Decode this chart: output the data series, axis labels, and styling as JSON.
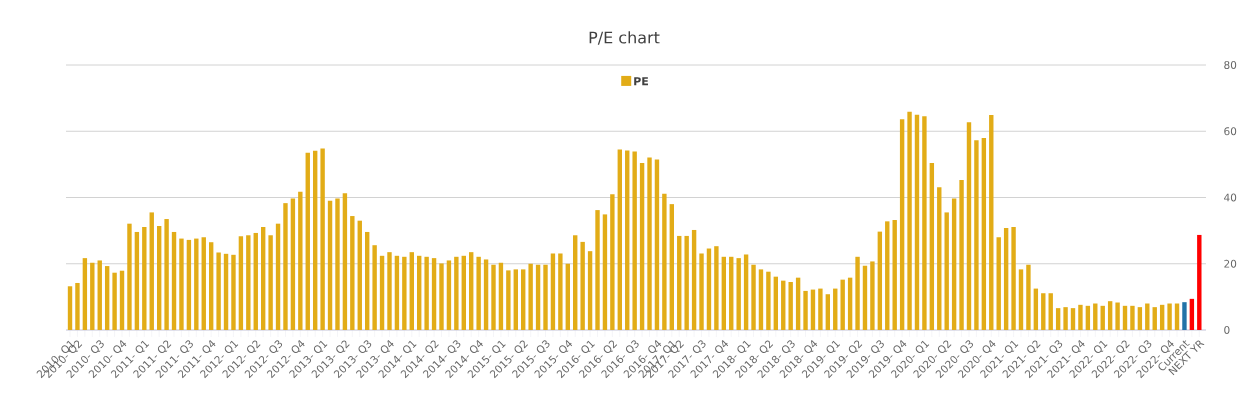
{
  "chart_data": {
    "type": "bar",
    "title": "P/E chart",
    "categories": [
      "2010- Q1",
      "2010- Q2",
      null,
      null,
      "2010- Q3",
      null,
      null,
      "2010- Q4",
      null,
      null,
      "2011- Q1",
      null,
      null,
      "2011- Q2",
      null,
      null,
      "2011- Q3",
      null,
      null,
      "2011- Q4",
      null,
      null,
      "2012- Q1",
      null,
      null,
      "2012- Q2",
      null,
      null,
      "2012- Q3",
      null,
      null,
      "2012- Q4",
      null,
      null,
      "2013- Q1",
      null,
      null,
      "2013- Q2",
      null,
      null,
      "2013- Q3",
      null,
      null,
      "2013- Q4",
      null,
      null,
      "2014- Q1",
      null,
      null,
      "2014- Q2",
      null,
      null,
      "2014- Q3",
      null,
      null,
      "2014- Q4",
      null,
      null,
      "2015- Q1",
      null,
      null,
      "2015- Q2",
      null,
      null,
      "2015- Q3",
      null,
      null,
      "2015- Q4",
      null,
      null,
      "2016- Q1",
      null,
      null,
      "2016- Q2",
      null,
      null,
      "2016- Q3",
      null,
      null,
      "2016- Q4",
      null,
      "2017- Q1",
      "2017- Q2",
      null,
      null,
      "2017- Q3",
      null,
      null,
      "2017- Q4",
      null,
      null,
      "2018- Q1",
      null,
      null,
      "2018- Q2",
      null,
      null,
      "2018- Q3",
      null,
      null,
      "2018- Q4",
      null,
      null,
      "2019- Q1",
      null,
      null,
      "2019- Q2",
      null,
      null,
      "2019- Q3",
      null,
      null,
      "2019- Q4",
      null,
      null,
      "2020- Q1",
      null,
      null,
      "2020- Q2",
      null,
      null,
      "2020- Q3",
      null,
      null,
      "2020- Q4",
      null,
      null,
      "2021- Q1",
      null,
      null,
      "2021- Q2",
      null,
      null,
      "2021- Q3",
      null,
      null,
      "2021- Q4",
      null,
      null,
      "2022- Q1",
      null,
      null,
      "2022- Q2",
      null,
      null,
      "2022- Q3",
      null,
      null,
      "2022- Q4",
      null,
      "Current",
      null,
      "NEXT YR"
    ],
    "series": [
      {
        "name": "PE",
        "color": "#e2ac17",
        "values": [
          13.2,
          14.2,
          21.7,
          20.3,
          21.0,
          19.3,
          17.3,
          17.9,
          32.1,
          29.6,
          31.1,
          35.5,
          31.4,
          33.5,
          29.6,
          27.6,
          27.2,
          27.6,
          28.0,
          26.5,
          23.4,
          23.0,
          22.7,
          28.3,
          28.6,
          29.3,
          31.1,
          28.6,
          32.1,
          38.3,
          39.7,
          41.7,
          53.5,
          54.1,
          54.8,
          39.0,
          39.7,
          41.3,
          34.4,
          33.0,
          29.6,
          25.6,
          22.4,
          23.5,
          22.4,
          22.1,
          23.5,
          22.4,
          22.1,
          21.7,
          20.1,
          21.0,
          22.1,
          22.4,
          23.5,
          22.1,
          21.3,
          19.7,
          20.3,
          18.0,
          18.3,
          18.3,
          20.0,
          19.7,
          19.7,
          23.1,
          23.1,
          20.0,
          28.6,
          26.6,
          23.8,
          36.2,
          34.9,
          41.0,
          54.5,
          54.2,
          53.9,
          50.4,
          52.1,
          51.5,
          41.1,
          38.0,
          28.4,
          28.4,
          30.2,
          23.1,
          24.6,
          25.3,
          22.1,
          22.1,
          21.7,
          22.8,
          19.7,
          18.3,
          17.6,
          16.1,
          14.9,
          14.5,
          15.8,
          11.8,
          12.2,
          12.5,
          10.8,
          12.5,
          15.2,
          15.8,
          22.1,
          19.4,
          20.7,
          29.7,
          32.8,
          33.2,
          63.6,
          65.9,
          65.0,
          64.5,
          50.4,
          43.1,
          35.5,
          39.7,
          45.3,
          62.7,
          57.3,
          58.0,
          64.9,
          28.0,
          30.8,
          31.1,
          18.3,
          19.7,
          12.5,
          11.1,
          11.1,
          6.6,
          6.9,
          6.6,
          7.6,
          7.3,
          8.0,
          7.3,
          8.7,
          8.3,
          7.3,
          7.3,
          6.9,
          8.0,
          6.9,
          7.6,
          8.0,
          8.0,
          8.4,
          9.4,
          28.7
        ],
        "colors": [
          "#e2ac17",
          "#e2ac17",
          "#e2ac17",
          "#e2ac17",
          "#e2ac17",
          "#e2ac17",
          "#e2ac17",
          "#e2ac17",
          "#e2ac17",
          "#e2ac17",
          "#e2ac17",
          "#e2ac17",
          "#e2ac17",
          "#e2ac17",
          "#e2ac17",
          "#e2ac17",
          "#e2ac17",
          "#e2ac17",
          "#e2ac17",
          "#e2ac17",
          "#e2ac17",
          "#e2ac17",
          "#e2ac17",
          "#e2ac17",
          "#e2ac17",
          "#e2ac17",
          "#e2ac17",
          "#e2ac17",
          "#e2ac17",
          "#e2ac17",
          "#e2ac17",
          "#e2ac17",
          "#e2ac17",
          "#e2ac17",
          "#e2ac17",
          "#e2ac17",
          "#e2ac17",
          "#e2ac17",
          "#e2ac17",
          "#e2ac17",
          "#e2ac17",
          "#e2ac17",
          "#e2ac17",
          "#e2ac17",
          "#e2ac17",
          "#e2ac17",
          "#e2ac17",
          "#e2ac17",
          "#e2ac17",
          "#e2ac17",
          "#e2ac17",
          "#e2ac17",
          "#e2ac17",
          "#e2ac17",
          "#e2ac17",
          "#e2ac17",
          "#e2ac17",
          "#e2ac17",
          "#e2ac17",
          "#e2ac17",
          "#e2ac17",
          "#e2ac17",
          "#e2ac17",
          "#e2ac17",
          "#e2ac17",
          "#e2ac17",
          "#e2ac17",
          "#e2ac17",
          "#e2ac17",
          "#e2ac17",
          "#e2ac17",
          "#e2ac17",
          "#e2ac17",
          "#e2ac17",
          "#e2ac17",
          "#e2ac17",
          "#e2ac17",
          "#e2ac17",
          "#e2ac17",
          "#e2ac17",
          "#e2ac17",
          "#e2ac17",
          "#e2ac17",
          "#e2ac17",
          "#e2ac17",
          "#e2ac17",
          "#e2ac17",
          "#e2ac17",
          "#e2ac17",
          "#e2ac17",
          "#e2ac17",
          "#e2ac17",
          "#e2ac17",
          "#e2ac17",
          "#e2ac17",
          "#e2ac17",
          "#e2ac17",
          "#e2ac17",
          "#e2ac17",
          "#e2ac17",
          "#e2ac17",
          "#e2ac17",
          "#e2ac17",
          "#e2ac17",
          "#e2ac17",
          "#e2ac17",
          "#e2ac17",
          "#e2ac17",
          "#e2ac17",
          "#e2ac17",
          "#e2ac17",
          "#e2ac17",
          "#e2ac17",
          "#e2ac17",
          "#e2ac17",
          "#e2ac17",
          "#e2ac17",
          "#e2ac17",
          "#e2ac17",
          "#e2ac17",
          "#e2ac17",
          "#e2ac17",
          "#e2ac17",
          "#e2ac17",
          "#e2ac17",
          "#e2ac17",
          "#e2ac17",
          "#e2ac17",
          "#e2ac17",
          "#e2ac17",
          "#e2ac17",
          "#e2ac17",
          "#e2ac17",
          "#e2ac17",
          "#e2ac17",
          "#e2ac17",
          "#e2ac17",
          "#e2ac17",
          "#e2ac17",
          "#e2ac17",
          "#e2ac17",
          "#e2ac17",
          "#e2ac17",
          "#e2ac17",
          "#e2ac17",
          "#e2ac17",
          "#e2ac17",
          "#e2ac17",
          "#e2ac17",
          "#e2ac17",
          "#2273a8",
          "#ff0000",
          "#ff0000"
        ]
      }
    ],
    "ylim": [
      0,
      80
    ],
    "yticks": [
      0,
      20,
      40,
      60,
      80
    ],
    "grid": "y",
    "legend": "top"
  }
}
